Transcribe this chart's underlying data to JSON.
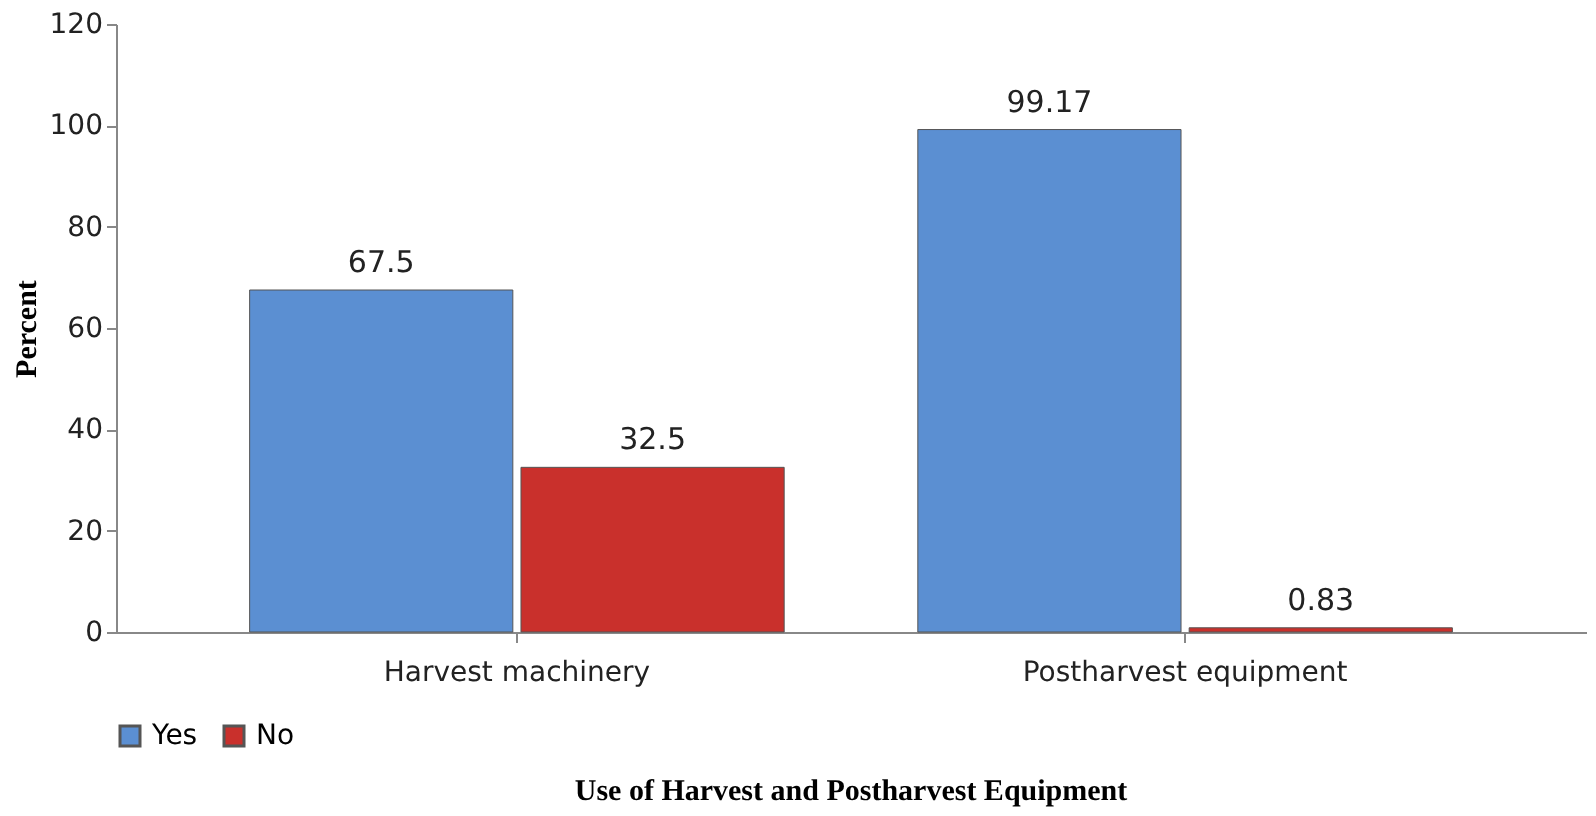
{
  "chart_data": {
    "type": "bar",
    "xlabel": "Use of Harvest and Postharvest Equipment",
    "ylabel": "Percent",
    "categories": [
      "Harvest machinery",
      "Postharvest equipment"
    ],
    "series": [
      {
        "name": "Yes",
        "color": "#5b8fd2",
        "values": [
          67.5,
          99.17
        ]
      },
      {
        "name": "No",
        "color": "#c9302c",
        "values": [
          32.5,
          0.83
        ]
      }
    ],
    "ylim": [
      0,
      120
    ],
    "yticks": [
      0,
      20,
      40,
      60,
      80,
      100,
      120
    ],
    "grid": false,
    "legend": "bottom",
    "data_labels": true
  }
}
